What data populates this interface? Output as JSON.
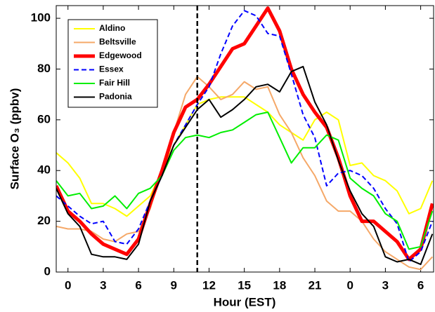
{
  "chart_data": {
    "type": "line",
    "xlabel": "Hour (EST)",
    "ylabel": "Surface O₃ (ppbv)",
    "x": [
      -1,
      0,
      1,
      2,
      3,
      4,
      5,
      6,
      7,
      8,
      9,
      10,
      11,
      12,
      13,
      14,
      15,
      16,
      17,
      18,
      19,
      20,
      21,
      22,
      23,
      24,
      25,
      26,
      27,
      28,
      29,
      30,
      31
    ],
    "xlim": [
      -1,
      31.1
    ],
    "xticks": [
      0,
      3,
      6,
      9,
      12,
      15,
      18,
      21,
      {
        "value": 24,
        "label": "0"
      },
      {
        "value": 27,
        "label": "3"
      },
      {
        "value": 30,
        "label": "6"
      }
    ],
    "ylim": [
      0,
      105
    ],
    "yticks": [
      0,
      20,
      40,
      60,
      80,
      100
    ],
    "vline": {
      "x": 11,
      "color": "#000000",
      "dashed": true
    },
    "legend": "upper left",
    "series": [
      {
        "name": "Aldino",
        "color": "#ffff00",
        "linewidth": 2,
        "dashed": false,
        "values": [
          47,
          43,
          37,
          27,
          27,
          25,
          22,
          26,
          30,
          40,
          50,
          58,
          66,
          68,
          69,
          69,
          69,
          66,
          63,
          58,
          55,
          52,
          60,
          63,
          60,
          42,
          43,
          38,
          36,
          32,
          23,
          25,
          36
        ]
      },
      {
        "name": "Beltsville",
        "color": "#f5a868",
        "linewidth": 2,
        "dashed": false,
        "values": [
          18,
          17,
          17,
          16,
          13,
          12,
          15,
          16,
          25,
          40,
          55,
          70,
          77,
          73,
          68,
          70,
          75,
          72,
          73,
          62,
          55,
          45,
          38,
          28,
          24,
          24,
          20,
          13,
          8,
          5,
          2,
          1,
          6
        ]
      },
      {
        "name": "Edgewood",
        "color": "#ff0000",
        "linewidth": 5,
        "dashed": false,
        "values": [
          34,
          24,
          20,
          15,
          11,
          9,
          7,
          13,
          27,
          40,
          55,
          65,
          68,
          74,
          81,
          88,
          90,
          97,
          104,
          95,
          80,
          70,
          63,
          57,
          45,
          30,
          20,
          20,
          16,
          12,
          5,
          9,
          27
        ]
      },
      {
        "name": "Essex",
        "color": "#0000ff",
        "linewidth": 2,
        "dashed": true,
        "values": [
          30,
          26,
          22,
          19,
          20,
          12,
          11,
          17,
          28,
          38,
          50,
          58,
          66,
          73,
          86,
          97,
          103,
          101,
          94,
          93,
          78,
          62,
          53,
          34,
          39,
          40,
          38,
          33,
          25,
          19,
          4,
          8,
          20
        ]
      },
      {
        "name": "Fair Hill",
        "color": "#00ee00",
        "linewidth": 2,
        "dashed": false,
        "values": [
          36,
          30,
          31,
          25,
          26,
          30,
          25,
          31,
          33,
          38,
          48,
          53,
          54,
          53,
          55,
          56,
          59,
          62,
          63,
          53,
          43,
          49,
          49,
          54,
          52,
          37,
          33,
          30,
          23,
          20,
          9,
          10,
          24
        ]
      },
      {
        "name": "Padonia",
        "color": "#000000",
        "linewidth": 2,
        "dashed": false,
        "values": [
          33,
          23,
          18,
          7,
          6,
          6,
          5,
          11,
          28,
          38,
          50,
          57,
          64,
          68,
          61,
          64,
          68,
          73,
          74,
          71,
          79,
          81,
          67,
          58,
          44,
          32,
          23,
          18,
          6,
          4,
          5,
          3,
          15
        ]
      }
    ]
  }
}
